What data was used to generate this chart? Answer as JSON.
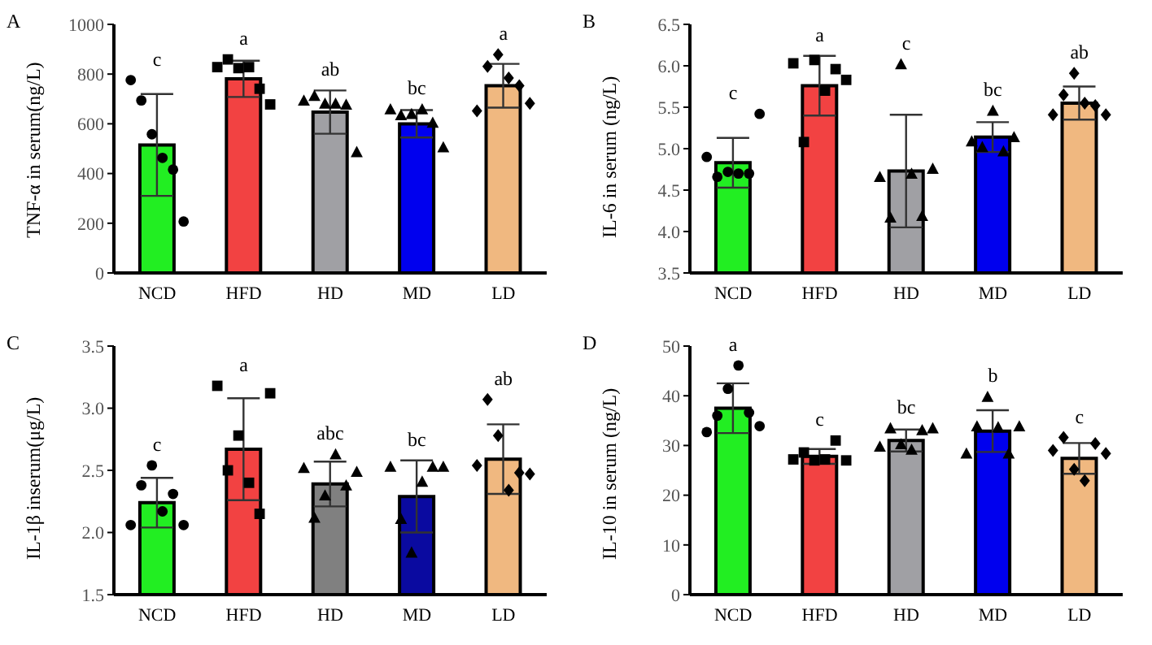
{
  "chart_data": [
    {
      "type": "bar",
      "title": "A",
      "ylabel": "TNF-α in serum(ng/L)",
      "categories": [
        "NCD",
        "HFD",
        "HD",
        "MD",
        "LD"
      ],
      "ylim": [
        0,
        1000
      ],
      "yticks": [
        0,
        200,
        400,
        600,
        800,
        1000
      ],
      "grid": false,
      "legend": false,
      "series": [
        {
          "colors": [
            "#22ee22",
            "#f24242",
            "#a0a0a4",
            "#0000ee",
            "#f0b880"
          ],
          "values": [
            515,
            781,
            647,
            600,
            753
          ],
          "errors": [
            205,
            73,
            87,
            55,
            88
          ]
        },
        {
          "type": "scatter",
          "marker": "circle",
          "color": "#000000",
          "x": [
            "NCD",
            "NCD",
            "NCD",
            "NCD",
            "NCD",
            "NCD"
          ],
          "values": [
            776,
            694,
            558,
            463,
            416,
            207
          ]
        },
        {
          "type": "scatter",
          "marker": "square",
          "color": "#000000",
          "x": [
            "HFD",
            "HFD",
            "HFD",
            "HFD",
            "HFD",
            "HFD"
          ],
          "values": [
            828,
            859,
            824,
            828,
            741,
            678
          ]
        },
        {
          "type": "scatter",
          "marker": "triangle",
          "color": "#000000",
          "x": [
            "HD",
            "HD",
            "HD",
            "HD",
            "HD",
            "HD"
          ],
          "values": [
            694,
            713,
            682,
            682,
            678,
            487
          ]
        },
        {
          "type": "scatter",
          "marker": "triangle",
          "color": "#000000",
          "x": [
            "MD",
            "MD",
            "MD",
            "MD",
            "MD",
            "MD"
          ],
          "values": [
            659,
            635,
            640,
            659,
            605,
            506
          ]
        },
        {
          "type": "scatter",
          "marker": "diamond",
          "color": "#000000",
          "x": [
            "LD",
            "LD",
            "LD",
            "LD",
            "LD",
            "LD"
          ],
          "values": [
            652,
            831,
            878,
            784,
            753,
            682
          ]
        }
      ],
      "annotations": [
        "c",
        "a",
        "ab",
        "bc",
        "a"
      ]
    },
    {
      "type": "bar",
      "title": "B",
      "ylabel": "IL-6 in serum (ng/L)",
      "categories": [
        "NCD",
        "HFD",
        "HD",
        "MD",
        "LD"
      ],
      "ylim": [
        3.5,
        6.5
      ],
      "yticks": [
        3.5,
        {
          "value": 4,
          "label": "4.0"
        },
        4.5,
        {
          "value": 5,
          "label": "5.0"
        },
        5.5,
        {
          "value": 6,
          "label": "6.0"
        },
        6.5
      ],
      "grid": false,
      "legend": false,
      "series": [
        {
          "colors": [
            "#22ee22",
            "#f24242",
            "#a0a0a4",
            "#0000ee",
            "#f0b880"
          ],
          "values": [
            4.83,
            5.76,
            4.73,
            5.14,
            5.55
          ],
          "errors": [
            0.3,
            0.36,
            0.68,
            0.18,
            0.2
          ]
        },
        {
          "type": "scatter",
          "marker": "circle",
          "color": "#000000",
          "x": [
            "NCD",
            "NCD",
            "NCD",
            "NCD",
            "NCD",
            "NCD"
          ],
          "values": [
            4.9,
            4.66,
            4.72,
            4.7,
            4.7,
            5.42
          ]
        },
        {
          "type": "scatter",
          "marker": "square",
          "color": "#000000",
          "x": [
            "HFD",
            "HFD",
            "HFD",
            "HFD",
            "HFD",
            "HFD"
          ],
          "values": [
            6.03,
            5.08,
            6.07,
            5.7,
            5.96,
            5.83
          ]
        },
        {
          "type": "scatter",
          "marker": "triangle",
          "color": "#000000",
          "x": [
            "HD",
            "HD",
            "HD",
            "HD",
            "HD",
            "HD"
          ],
          "values": [
            4.66,
            4.17,
            6.02,
            4.7,
            4.19,
            4.76
          ]
        },
        {
          "type": "scatter",
          "marker": "triangle",
          "color": "#000000",
          "x": [
            "MD",
            "MD",
            "MD",
            "MD",
            "MD"
          ],
          "values": [
            5.09,
            5.02,
            5.46,
            4.97,
            5.14
          ]
        },
        {
          "type": "scatter",
          "marker": "diamond",
          "color": "#000000",
          "x": [
            "LD",
            "LD",
            "LD",
            "LD",
            "LD",
            "LD"
          ],
          "values": [
            5.41,
            5.65,
            5.91,
            5.55,
            5.52,
            5.41
          ]
        }
      ],
      "annotations": [
        "c",
        "a",
        "c",
        "bc",
        "ab"
      ]
    },
    {
      "type": "bar",
      "title": "C",
      "ylabel": "IL-1β inserum(μg/L)",
      "categories": [
        "NCD",
        "HFD",
        "HD",
        "MD",
        "LD"
      ],
      "ylim": [
        1.5,
        3.5
      ],
      "yticks": [
        1.5,
        {
          "value": 2,
          "label": "2.0"
        },
        2.5,
        {
          "value": 3,
          "label": "3.0"
        },
        3.5
      ],
      "grid": false,
      "legend": false,
      "series": [
        {
          "colors": [
            "#22ee22",
            "#f24242",
            "#808080",
            "#0a0aa0",
            "#f0b880"
          ],
          "values": [
            2.24,
            2.67,
            2.39,
            2.29,
            2.59
          ],
          "errors": [
            0.2,
            0.41,
            0.18,
            0.29,
            0.28
          ]
        },
        {
          "type": "scatter",
          "marker": "circle",
          "color": "#000000",
          "x": [
            "NCD",
            "NCD",
            "NCD",
            "NCD",
            "NCD",
            "NCD"
          ],
          "values": [
            2.06,
            2.38,
            2.54,
            2.17,
            2.31,
            2.06
          ]
        },
        {
          "type": "scatter",
          "marker": "square",
          "color": "#000000",
          "x": [
            "HFD",
            "HFD",
            "HFD",
            "HFD",
            "HFD",
            "HFD"
          ],
          "values": [
            3.18,
            2.5,
            2.78,
            2.4,
            2.15,
            3.12
          ]
        },
        {
          "type": "scatter",
          "marker": "triangle",
          "color": "#000000",
          "x": [
            "HD",
            "HD",
            "HD",
            "HD",
            "HD",
            "HD"
          ],
          "values": [
            2.52,
            2.12,
            2.3,
            2.63,
            2.38,
            2.49
          ]
        },
        {
          "type": "scatter",
          "marker": "triangle",
          "color": "#000000",
          "x": [
            "MD",
            "MD",
            "MD",
            "MD",
            "MD",
            "MD"
          ],
          "values": [
            2.53,
            2.11,
            1.84,
            2.41,
            2.53,
            2.53
          ]
        },
        {
          "type": "scatter",
          "marker": "diamond",
          "color": "#000000",
          "x": [
            "LD",
            "LD",
            "LD",
            "LD",
            "LD",
            "LD"
          ],
          "values": [
            2.54,
            3.07,
            2.78,
            2.34,
            2.48,
            2.47
          ]
        }
      ],
      "annotations": [
        "c",
        "a",
        "abc",
        "bc",
        "ab"
      ]
    },
    {
      "type": "bar",
      "title": "D",
      "ylabel": "IL-10 in serum (ng/L)",
      "categories": [
        "NCD",
        "HFD",
        "HD",
        "MD",
        "LD"
      ],
      "ylim": [
        0,
        50
      ],
      "yticks": [
        0,
        10,
        20,
        30,
        40,
        50
      ],
      "grid": false,
      "legend": false,
      "series": [
        {
          "colors": [
            "#22ee22",
            "#f24242",
            "#a0a0a4",
            "#0000ee",
            "#f0b880"
          ],
          "values": [
            37.5,
            27.8,
            31.0,
            32.9,
            27.4
          ],
          "errors": [
            5,
            1.5,
            2.2,
            4.2,
            3.1
          ]
        },
        {
          "type": "scatter",
          "marker": "circle",
          "color": "#000000",
          "x": [
            "NCD",
            "NCD",
            "NCD",
            "NCD",
            "NCD",
            "NCD"
          ],
          "values": [
            32.7,
            36.0,
            41.4,
            46.1,
            36.6,
            33.9
          ]
        },
        {
          "type": "scatter",
          "marker": "square",
          "color": "#000000",
          "x": [
            "HFD",
            "HFD",
            "HFD",
            "HFD",
            "HFD",
            "HFD"
          ],
          "values": [
            27.2,
            28.6,
            27.0,
            27.2,
            31.0,
            27.0
          ]
        },
        {
          "type": "scatter",
          "marker": "triangle",
          "color": "#000000",
          "x": [
            "HD",
            "HD",
            "HD",
            "HD",
            "HD",
            "HD"
          ],
          "values": [
            29.8,
            33.5,
            30.3,
            29.2,
            33.1,
            33.5
          ]
        },
        {
          "type": "scatter",
          "marker": "triangle",
          "color": "#000000",
          "x": [
            "MD",
            "MD",
            "MD",
            "MD",
            "MD",
            "MD"
          ],
          "values": [
            28.4,
            33.9,
            39.8,
            33.7,
            28.4,
            33.9
          ]
        },
        {
          "type": "scatter",
          "marker": "diamond",
          "color": "#000000",
          "x": [
            "LD",
            "LD",
            "LD",
            "LD",
            "LD",
            "LD"
          ],
          "values": [
            29.0,
            31.6,
            25.2,
            22.9,
            30.4,
            28.4
          ]
        }
      ],
      "annotations": [
        "a",
        "c",
        "bc",
        "b",
        "c"
      ]
    }
  ]
}
